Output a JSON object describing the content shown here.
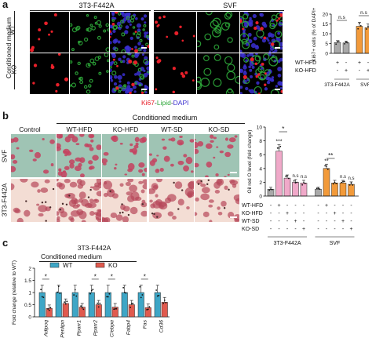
{
  "panels": {
    "a": {
      "label": "a",
      "col_headers": [
        "3T3-F442A",
        "SVF"
      ],
      "row_labels": [
        "WT",
        "KO"
      ],
      "side_label": "Conditioned medium",
      "stain_legend": {
        "ki67": "Ki67",
        "sep1": "-",
        "lipid": "Lipid",
        "sep2": "-",
        "dapi": "DAPI"
      }
    },
    "b": {
      "label": "b",
      "header": "Conditioned medium",
      "col_labels": [
        "Control",
        "WT-HFD",
        "KO-HFD",
        "WT-SD",
        "KO-SD"
      ],
      "row_labels": [
        "SVF",
        "3T3-F442A"
      ]
    },
    "c": {
      "label": "c",
      "title": "3T3-F442A",
      "legend_title": "Conditioned medium"
    }
  },
  "colors": {
    "ki67": "#e8202a",
    "lipid": "#2ea83a",
    "dapi": "#3a2fd0",
    "gray_bar": "#a9a9a9",
    "pink_bar": "#f0a9c9",
    "orange_bar": "#f29a3a",
    "teal_bar": "#3ea6c6",
    "red_bar": "#e05a4e"
  },
  "chart_data": [
    {
      "id": "ki67",
      "type": "bar",
      "ylabel": "Ki67+ cells (% of DAPI+)",
      "ylim": [
        0,
        20
      ],
      "yticks": [
        0,
        5,
        10,
        15,
        20
      ],
      "groups": [
        {
          "name": "3T3-F442A",
          "bars": [
            {
              "values": 5.5,
              "color": "#a9a9a9"
            },
            {
              "values": 5.3,
              "color": "#a9a9a9"
            }
          ]
        },
        {
          "name": "SVF",
          "bars": [
            {
              "values": 13.8,
              "color": "#f29a3a"
            },
            {
              "values": 13.1,
              "color": "#f29a3a"
            }
          ]
        }
      ],
      "annotations": [
        "n.s",
        "n.s"
      ],
      "conditions": {
        "WT-HFD": [
          "+",
          "-",
          "+",
          "-"
        ],
        "KO-HFD": [
          "-",
          "+",
          "-",
          "+"
        ]
      }
    },
    {
      "id": "oilred",
      "type": "bar",
      "ylabel": "Oil red O level (fold change)",
      "ylim": [
        0,
        10
      ],
      "yticks": [
        0,
        2,
        4,
        6,
        8,
        10
      ],
      "groups": [
        {
          "name": "3T3-F442A",
          "bars": [
            {
              "values": 1.0,
              "color": "#a9a9a9"
            },
            {
              "values": 6.5,
              "color": "#f0a9c9"
            },
            {
              "values": 2.6,
              "color": "#f0a9c9"
            },
            {
              "values": 2.0,
              "color": "#f0a9c9"
            },
            {
              "values": 1.9,
              "color": "#f0a9c9"
            }
          ]
        },
        {
          "name": "SVF",
          "bars": [
            {
              "values": 1.0,
              "color": "#a9a9a9"
            },
            {
              "values": 4.0,
              "color": "#f29a3a"
            },
            {
              "values": 1.9,
              "color": "#f29a3a"
            },
            {
              "values": 1.9,
              "color": "#f29a3a"
            },
            {
              "values": 1.7,
              "color": "#f29a3a"
            }
          ]
        }
      ],
      "annotations": [
        "*",
        "***",
        "n.s",
        "n.s",
        "**",
        "**",
        "n.s",
        "n.s"
      ],
      "conditions": {
        "WT-HFD": [
          "-",
          "+",
          "-",
          "-",
          "-",
          "-",
          "+",
          "-",
          "-",
          "-"
        ],
        "KO-HFD": [
          "-",
          "-",
          "+",
          "-",
          "-",
          "-",
          "-",
          "+",
          "-",
          "-"
        ],
        "WT-SD": [
          "-",
          "-",
          "-",
          "+",
          "-",
          "-",
          "-",
          "-",
          "+",
          "-"
        ],
        "KO-SD": [
          "-",
          "-",
          "-",
          "-",
          "+",
          "-",
          "-",
          "-",
          "-",
          "+"
        ]
      }
    },
    {
      "id": "genes",
      "type": "bar",
      "title": "3T3-F442A",
      "ylabel": "Fold change (relative to WT)",
      "ylim": [
        0,
        2.0
      ],
      "yticks": [
        0,
        0.5,
        1.0,
        1.5,
        2.0
      ],
      "categories": [
        "Adipoq",
        "Penlipn",
        "Pparr1",
        "Pparr2",
        "C/ebpα",
        "Fabp4",
        "Fas",
        "Cd36"
      ],
      "series": [
        {
          "name": "WT",
          "color": "#3ea6c6",
          "values": [
            1.0,
            1.0,
            1.0,
            1.0,
            1.0,
            1.0,
            1.0,
            1.0
          ]
        },
        {
          "name": "KO",
          "color": "#e05a4e",
          "values": [
            0.35,
            0.55,
            0.4,
            0.5,
            0.4,
            0.5,
            0.38,
            0.6
          ]
        }
      ],
      "annotations": [
        "*",
        "",
        "",
        "*",
        "*",
        "",
        "*",
        ""
      ]
    }
  ]
}
